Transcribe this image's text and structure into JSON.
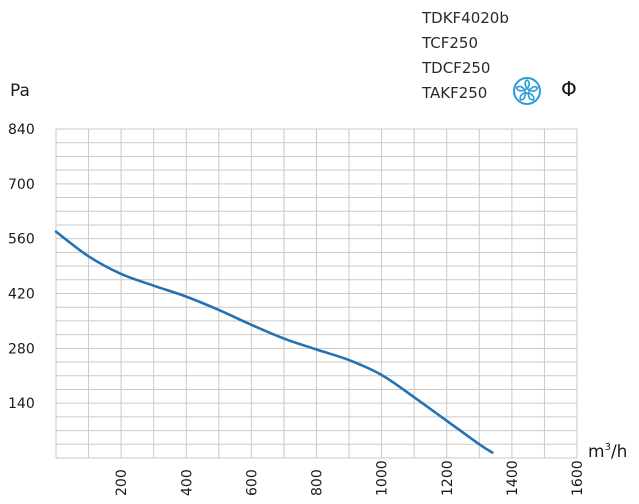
{
  "header": {
    "models": [
      "TDKF4020b",
      "TCF250",
      "TDCF250",
      "TAKF250"
    ],
    "icons": [
      "fan-icon",
      "phase-symbol"
    ],
    "phase_symbol": "Φ",
    "accent_color": "#2a9bd6"
  },
  "chart_data": {
    "type": "line",
    "title": "",
    "xlabel_base": "m",
    "xlabel_sup": "3",
    "xlabel_tail": "/h",
    "ylabel": "Pa",
    "xlim": [
      0,
      1600
    ],
    "ylim": [
      0,
      840
    ],
    "x_ticks": [
      "200",
      "400",
      "600",
      "800",
      "1000",
      "1200",
      "1400",
      "1600"
    ],
    "y_ticks": [
      "140",
      "280",
      "420",
      "560",
      "700",
      "840"
    ],
    "grid": true,
    "line_color": "#2272b4",
    "series": [
      {
        "x": [
          0,
          100,
          200,
          300,
          400,
          500,
          600,
          700,
          800,
          900,
          1000,
          1100,
          1200,
          1300,
          1340
        ],
        "values": [
          578,
          515,
          470,
          440,
          412,
          378,
          340,
          305,
          277,
          250,
          212,
          155,
          95,
          35,
          14
        ]
      }
    ]
  }
}
